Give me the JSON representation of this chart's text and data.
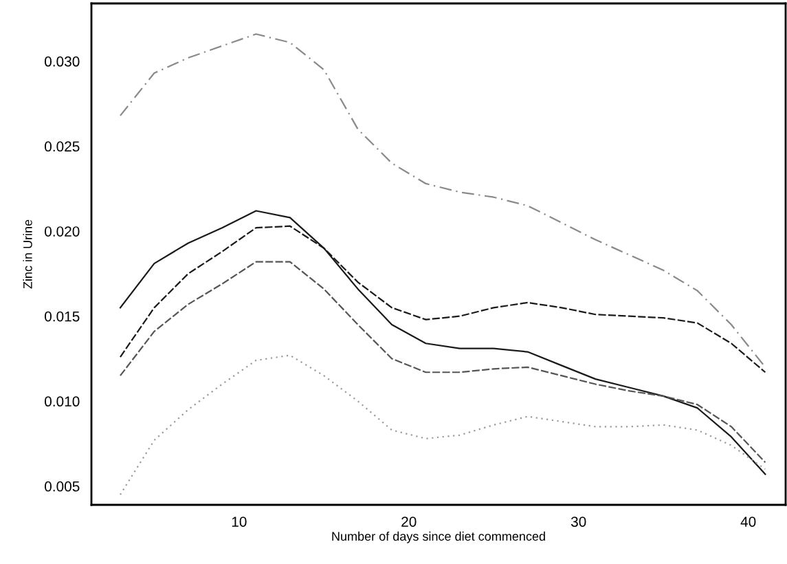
{
  "chart_data": {
    "type": "line",
    "xlabel": "Number of days since diet commenced",
    "ylabel": "Zinc in Urine",
    "x": [
      3,
      5,
      7,
      9,
      11,
      13,
      15,
      17,
      19,
      21,
      23,
      25,
      27,
      29,
      31,
      33,
      35,
      37,
      39,
      41
    ],
    "xlim": [
      1.3,
      42.2
    ],
    "xticks": [
      10,
      20,
      30,
      40
    ],
    "ylim": [
      0.0039,
      0.0334
    ],
    "yticks": [
      {
        "value": 0.005,
        "label": "0.005"
      },
      {
        "value": 0.01,
        "label": "0.010"
      },
      {
        "value": 0.015,
        "label": "0.015"
      },
      {
        "value": 0.02,
        "label": "0.020"
      },
      {
        "value": 0.025,
        "label": "0.025"
      },
      {
        "value": 0.03,
        "label": "0.030"
      }
    ],
    "grid": false,
    "marker": "none",
    "series": [
      {
        "color": "#8a8a8a",
        "line_style": "dashdot",
        "values": [
          0.0268,
          0.0293,
          0.0302,
          0.0309,
          0.0316,
          0.0311,
          0.0295,
          0.026,
          0.024,
          0.0228,
          0.0223,
          0.022,
          0.0215,
          0.0205,
          0.0195,
          0.0186,
          0.0177,
          0.0165,
          0.0145,
          0.012
        ]
      },
      {
        "color": "#1a1a1a",
        "line_style": "solid",
        "values": [
          0.0155,
          0.0181,
          0.0193,
          0.0202,
          0.0212,
          0.0208,
          0.019,
          0.0166,
          0.0145,
          0.0134,
          0.0131,
          0.0131,
          0.0129,
          0.0121,
          0.0113,
          0.0108,
          0.0103,
          0.0096,
          0.0079,
          0.0057
        ]
      },
      {
        "color": "#1a1a1a",
        "line_style": "dashed",
        "values": [
          0.0126,
          0.0155,
          0.0175,
          0.0188,
          0.0202,
          0.0203,
          0.019,
          0.017,
          0.0155,
          0.0148,
          0.015,
          0.0155,
          0.0158,
          0.0155,
          0.0151,
          0.015,
          0.0149,
          0.0146,
          0.0134,
          0.0117
        ]
      },
      {
        "color": "#555555",
        "line_style": "dashed",
        "values": [
          0.0115,
          0.0141,
          0.0157,
          0.0169,
          0.0182,
          0.0182,
          0.0166,
          0.0145,
          0.0125,
          0.0117,
          0.0117,
          0.0119,
          0.012,
          0.0115,
          0.011,
          0.0106,
          0.0103,
          0.0098,
          0.0085,
          0.0064
        ]
      },
      {
        "color": "#9a9a9a",
        "line_style": "dotted",
        "values": [
          0.0045,
          0.0077,
          0.0095,
          0.011,
          0.0124,
          0.0127,
          0.0115,
          0.01,
          0.0083,
          0.0078,
          0.008,
          0.0086,
          0.0091,
          0.0088,
          0.0085,
          0.0085,
          0.0086,
          0.0083,
          0.0074,
          0.006
        ]
      }
    ]
  }
}
